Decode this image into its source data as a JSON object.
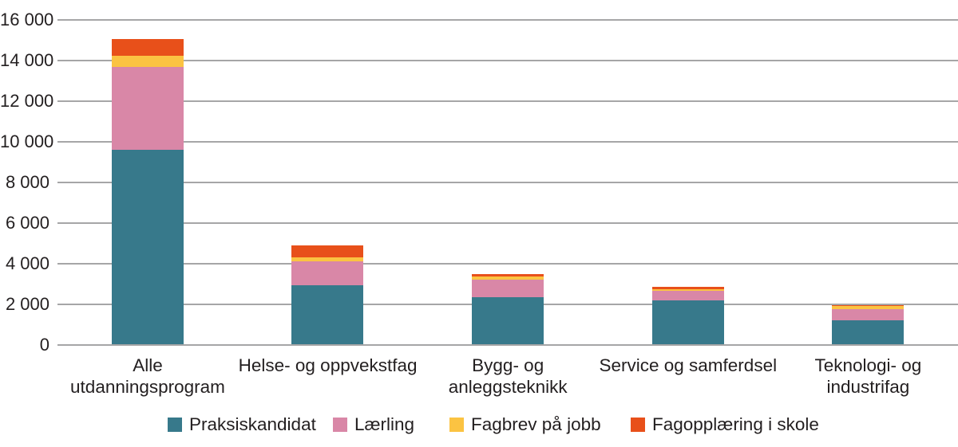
{
  "colors": {
    "teal": "#37798B",
    "pink": "#D987A7",
    "yellow": "#FBC342",
    "orange": "#E8501A",
    "gridline": "#A6A6A7",
    "text": "#231F20",
    "background": "#FFFFFF"
  },
  "chart_data": {
    "type": "bar",
    "stacked": true,
    "title": "",
    "xlabel": "",
    "ylabel": "",
    "grid": true,
    "legend_position": "bottom",
    "ylim": [
      0,
      16000
    ],
    "ytick_step": 2000,
    "ytick_labels": [
      "0",
      "2 000",
      "4 000",
      "6 000",
      "8 000",
      "10 000",
      "12 000",
      "14 000",
      "16 000"
    ],
    "categories": [
      "Alle utdanningsprogram",
      "Helse- og oppvekstfag",
      "Bygg- og anleggsteknikk",
      "Service og samferdsel",
      "Teknologi- og industrifag"
    ],
    "category_lines": [
      [
        "Alle",
        "utdanningsprogram"
      ],
      [
        "Helse- og oppvekstfag"
      ],
      [
        "Bygg- og",
        "anleggsteknikk"
      ],
      [
        "Service og samferdsel"
      ],
      [
        "Teknologi- og",
        "industrifag"
      ]
    ],
    "series": [
      {
        "name": "Praksiskandidat",
        "color": "#37798B",
        "values": [
          9600,
          2950,
          2350,
          2200,
          1200
        ]
      },
      {
        "name": "Lærling",
        "color": "#D987A7",
        "values": [
          4090,
          1170,
          870,
          470,
          550
        ]
      },
      {
        "name": "Fagbrev på jobb",
        "color": "#FBC342",
        "values": [
          560,
          180,
          160,
          80,
          170
        ]
      },
      {
        "name": "Fagopplæring i skole",
        "color": "#E8501A",
        "values": [
          800,
          600,
          120,
          100,
          60
        ]
      }
    ],
    "stack_totals": [
      15050,
      4900,
      3500,
      2850,
      1980
    ]
  }
}
